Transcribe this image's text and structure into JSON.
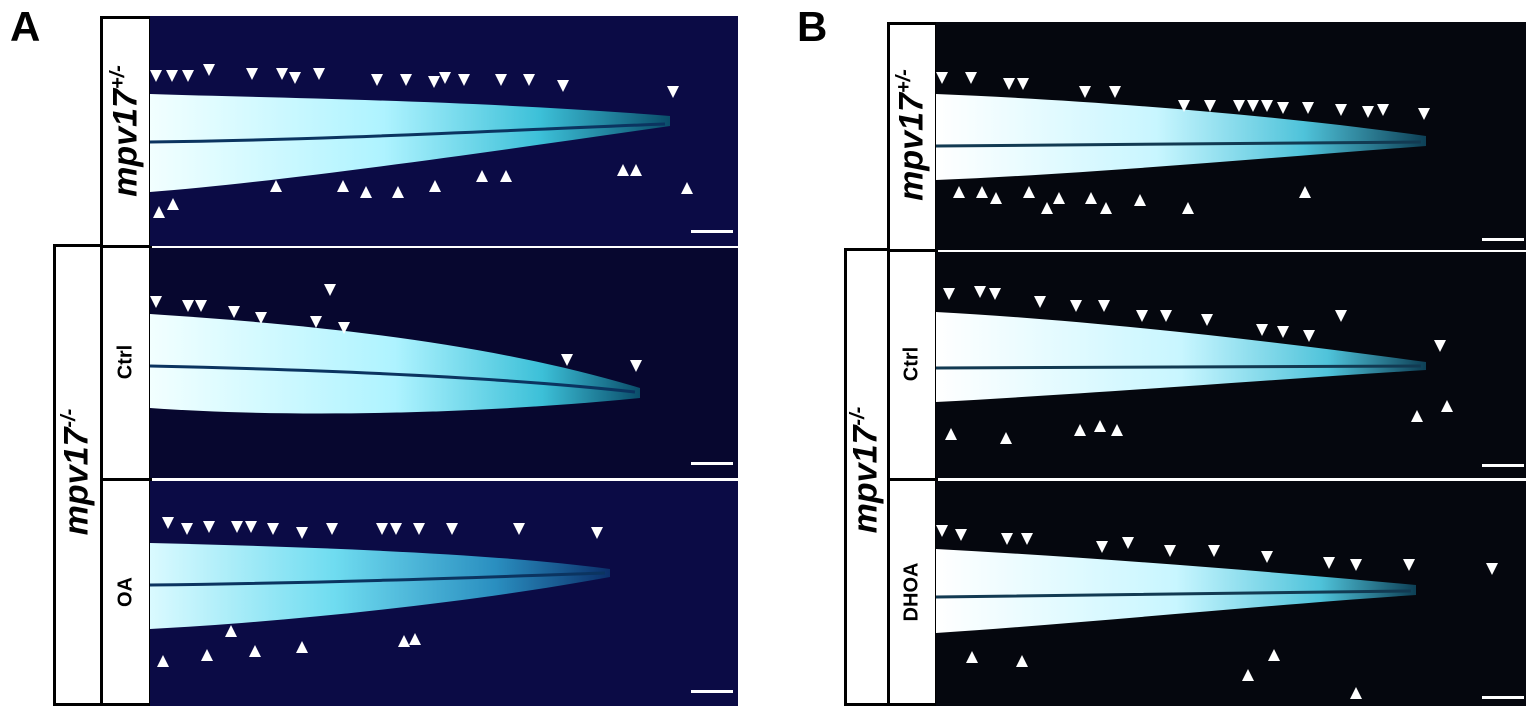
{
  "panels": {
    "A": {
      "letter": "A",
      "outer_genotype": {
        "base": "mpv17",
        "sup": "-/-"
      },
      "rows": [
        {
          "label_base": "mpv17",
          "label_sup": "+/-",
          "italic": true,
          "fish_color": "#0b0b45"
        },
        {
          "label": "Ctrl",
          "fish_color": "#07072f"
        },
        {
          "label": "OA",
          "fish_color": "#0b0b45"
        }
      ]
    },
    "B": {
      "letter": "B",
      "outer_genotype": {
        "base": "mpv17",
        "sup": "-/-"
      },
      "rows": [
        {
          "label_base": "mpv17",
          "label_sup": "+/-",
          "italic": true,
          "fish_color": "#05070e"
        },
        {
          "label": "Ctrl",
          "fish_color": "#05070e"
        },
        {
          "label": "DHOA",
          "fish_color": "#05070e"
        }
      ]
    }
  },
  "colors": {
    "arrowhead": "#ffffff",
    "fish_bright": "#e8ffff",
    "fish_cyan": "#4fd0e0",
    "scale_bar": "#ffffff"
  }
}
